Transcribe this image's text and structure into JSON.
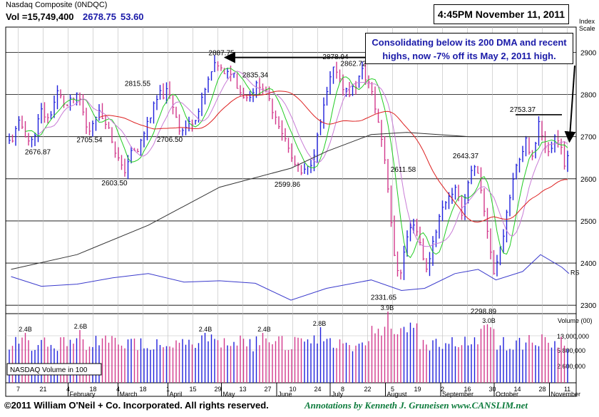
{
  "header": {
    "title": "Nasdaq Composite  (0NDQC)",
    "vol_label": "Vol =15,749,400",
    "last_price": "2678.75",
    "change": "53.60",
    "timestamp": "4:45PM November 11, 2011",
    "scale_label_1": "Index",
    "scale_label_2": "Scale"
  },
  "annotation": {
    "line1": "Consolidating below its 200 DMA and recent",
    "line2": "highs, now -7% off its May 2, 2011 high."
  },
  "footer": {
    "copyright": "©2011 William O'Neil + Co. Incorporated. All rights reserved.",
    "annotations_credit": "Annotations by Kenneth J. Gruneisen  www.CANSLIM.net"
  },
  "colors": {
    "bar_blue": "#1f1fdc",
    "bar_pink": "#d2388c",
    "ma_green": "#22cc22",
    "ma_violet": "#c87bd6",
    "ma_red": "#dd2020",
    "ma_black": "#333333",
    "rs_line": "#3a3acc",
    "annotation_text": "#1a1aa8",
    "credit_text": "#0a7a3a"
  },
  "chart_data": {
    "type": "ohlc",
    "price_axis": {
      "ticks": [
        2300,
        2400,
        2500,
        2600,
        2700,
        2800,
        2900
      ],
      "range": [
        2280,
        2960
      ]
    },
    "volume_axis": {
      "title": "Volume (00)",
      "ticks": [
        "13,000,000",
        "5,800,000",
        "2,600,000"
      ]
    },
    "volume_panel_label": "NASDAQ Volume in 100",
    "x_ticks": [
      {
        "d": 7,
        "label": "7"
      },
      {
        "d": 21,
        "label": "21"
      },
      {
        "d": 35,
        "label": "4"
      },
      {
        "d": 49,
        "label": "18"
      },
      {
        "d": 63,
        "label": "4"
      },
      {
        "d": 77,
        "label": "18"
      },
      {
        "d": 91,
        "label": "1"
      },
      {
        "d": 105,
        "label": "15"
      },
      {
        "d": 119,
        "label": "29"
      },
      {
        "d": 133,
        "label": "13"
      },
      {
        "d": 147,
        "label": "27"
      },
      {
        "d": 161,
        "label": "10"
      },
      {
        "d": 175,
        "label": "24"
      },
      {
        "d": 189,
        "label": "8"
      },
      {
        "d": 203,
        "label": "22"
      },
      {
        "d": 217,
        "label": "5"
      },
      {
        "d": 231,
        "label": "19"
      },
      {
        "d": 245,
        "label": "2"
      },
      {
        "d": 259,
        "label": "16"
      },
      {
        "d": 273,
        "label": "30"
      },
      {
        "d": 287,
        "label": "14"
      },
      {
        "d": 301,
        "label": "28"
      },
      {
        "d": 315,
        "label": "11"
      }
    ],
    "months": [
      {
        "d": 35,
        "label": "February"
      },
      {
        "d": 63,
        "label": "March"
      },
      {
        "d": 91,
        "label": "April"
      },
      {
        "d": 121,
        "label": "May"
      },
      {
        "d": 152,
        "label": "June"
      },
      {
        "d": 182,
        "label": "July"
      },
      {
        "d": 213,
        "label": "August"
      },
      {
        "d": 244,
        "label": "September"
      },
      {
        "d": 274,
        "label": "October"
      },
      {
        "d": 305,
        "label": "November"
      }
    ],
    "price_anchors": [
      [
        3,
        2688
      ],
      [
        8,
        2735
      ],
      [
        14,
        2680
      ],
      [
        20,
        2760
      ],
      [
        24,
        2740
      ],
      [
        29,
        2805
      ],
      [
        34,
        2770
      ],
      [
        39,
        2795
      ],
      [
        42,
        2785
      ],
      [
        46,
        2705
      ],
      [
        51,
        2760
      ],
      [
        56,
        2740
      ],
      [
        62,
        2660
      ],
      [
        66,
        2612
      ],
      [
        70,
        2660
      ],
      [
        74,
        2665
      ],
      [
        80,
        2740
      ],
      [
        86,
        2798
      ],
      [
        91,
        2806
      ],
      [
        95,
        2760
      ],
      [
        98,
        2712
      ],
      [
        103,
        2730
      ],
      [
        108,
        2758
      ],
      [
        112,
        2812
      ],
      [
        116,
        2860
      ],
      [
        119,
        2872
      ],
      [
        123,
        2840
      ],
      [
        127,
        2860
      ],
      [
        131,
        2810
      ],
      [
        135,
        2792
      ],
      [
        139,
        2812
      ],
      [
        143,
        2830
      ],
      [
        147,
        2790
      ],
      [
        152,
        2745
      ],
      [
        157,
        2690
      ],
      [
        161,
        2640
      ],
      [
        166,
        2610
      ],
      [
        170,
        2625
      ],
      [
        174,
        2680
      ],
      [
        178,
        2760
      ],
      [
        182,
        2835
      ],
      [
        185,
        2868
      ],
      [
        188,
        2830
      ],
      [
        192,
        2800
      ],
      [
        196,
        2820
      ],
      [
        200,
        2855
      ],
      [
        204,
        2825
      ],
      [
        208,
        2755
      ],
      [
        212,
        2670
      ],
      [
        215,
        2560
      ],
      [
        218,
        2410
      ],
      [
        221,
        2370
      ],
      [
        225,
        2460
      ],
      [
        229,
        2500
      ],
      [
        233,
        2440
      ],
      [
        236,
        2380
      ],
      [
        240,
        2460
      ],
      [
        244,
        2520
      ],
      [
        248,
        2560
      ],
      [
        252,
        2575
      ],
      [
        256,
        2520
      ],
      [
        260,
        2610
      ],
      [
        264,
        2625
      ],
      [
        268,
        2530
      ],
      [
        271,
        2460
      ],
      [
        274,
        2370
      ],
      [
        277,
        2430
      ],
      [
        281,
        2510
      ],
      [
        285,
        2620
      ],
      [
        289,
        2660
      ],
      [
        292,
        2700
      ],
      [
        296,
        2635
      ],
      [
        299,
        2740
      ],
      [
        302,
        2690
      ],
      [
        305,
        2650
      ],
      [
        308,
        2710
      ],
      [
        311,
        2690
      ],
      [
        314,
        2620
      ],
      [
        316,
        2660
      ]
    ],
    "ma200_anchors": [
      [
        3,
        2385
      ],
      [
        40,
        2420
      ],
      [
        80,
        2490
      ],
      [
        120,
        2580
      ],
      [
        160,
        2625
      ],
      [
        180,
        2665
      ],
      [
        205,
        2705
      ],
      [
        225,
        2710
      ],
      [
        260,
        2700
      ],
      [
        300,
        2700
      ],
      [
        316,
        2700
      ]
    ],
    "rs_anchors": [
      [
        3,
        2368
      ],
      [
        20,
        2345
      ],
      [
        40,
        2350
      ],
      [
        60,
        2365
      ],
      [
        80,
        2375
      ],
      [
        100,
        2355
      ],
      [
        120,
        2358
      ],
      [
        140,
        2352
      ],
      [
        160,
        2312
      ],
      [
        180,
        2340
      ],
      [
        205,
        2360
      ],
      [
        222,
        2335
      ],
      [
        235,
        2340
      ],
      [
        252,
        2375
      ],
      [
        265,
        2385
      ],
      [
        275,
        2360
      ],
      [
        290,
        2380
      ],
      [
        300,
        2420
      ],
      [
        312,
        2390
      ],
      [
        316,
        2375
      ]
    ],
    "volume_highlights": [
      {
        "d": 11,
        "label": "2.4B"
      },
      {
        "d": 42,
        "label": "2.6B"
      },
      {
        "d": 112,
        "label": "2.4B"
      },
      {
        "d": 145,
        "label": "2.4B"
      },
      {
        "d": 176,
        "label": "2.8B"
      },
      {
        "d": 214,
        "label": "3.9B"
      },
      {
        "d": 271,
        "label": "3.0B"
      }
    ],
    "price_annotations": [
      {
        "d": 121,
        "v": 2887.75,
        "label": "2887.75"
      },
      {
        "d": 185,
        "v": 2878.94,
        "label": "2878.94"
      },
      {
        "d": 195,
        "v": 2862.72,
        "label": "2862.72"
      },
      {
        "d": 74,
        "v": 2815.55,
        "label": "2815.55"
      },
      {
        "d": 140,
        "v": 2835.34,
        "label": "2835.34"
      },
      {
        "d": 18,
        "v": 2676.87,
        "label": "2676.87"
      },
      {
        "d": 47,
        "v": 2705.54,
        "label": "2705.54"
      },
      {
        "d": 92,
        "v": 2706.5,
        "label": "2706.50"
      },
      {
        "d": 61,
        "v": 2603.5,
        "label": "2603.50"
      },
      {
        "d": 158,
        "v": 2599.86,
        "label": "2599.86"
      },
      {
        "d": 223,
        "v": 2611.58,
        "label": "2611.58"
      },
      {
        "d": 258,
        "v": 2643.37,
        "label": "2643.37"
      },
      {
        "d": 212,
        "v": 2331.65,
        "label": "2331.65"
      },
      {
        "d": 268,
        "v": 2298.89,
        "label": "2298.89"
      },
      {
        "d": 290,
        "v": 2753.37,
        "label": "2753.37"
      }
    ],
    "rs_label": "RS"
  }
}
